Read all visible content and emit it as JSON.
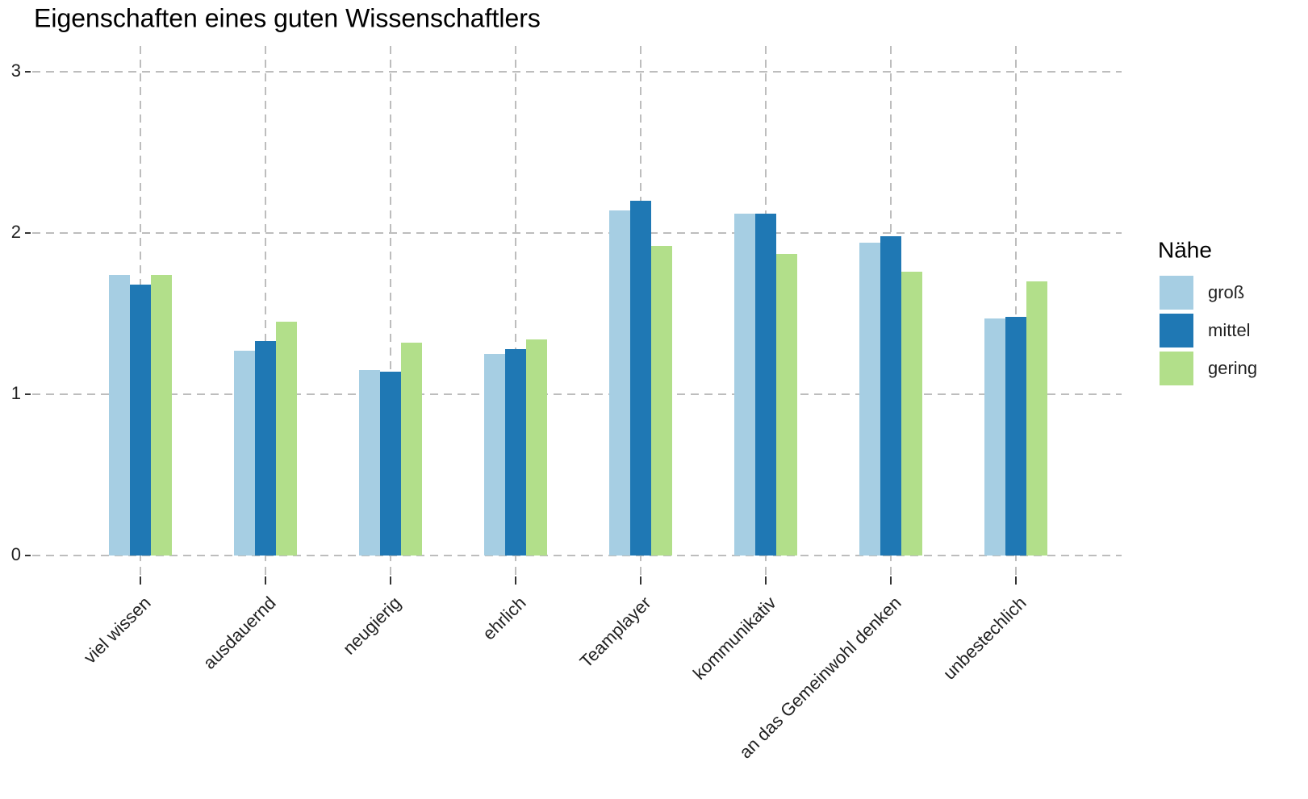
{
  "chart_data": {
    "type": "bar",
    "title": "Eigenschaften eines guten Wissenschaftlers",
    "categories": [
      "viel wissen",
      "ausdauernd",
      "neugierig",
      "ehrlich",
      "Teamplayer",
      "kommunikativ",
      "an das Gemeinwohl denken",
      "unbestechlich"
    ],
    "legend_title": "Nähe",
    "series": [
      {
        "name": "groß",
        "color": "#a6cee3",
        "values": [
          1.74,
          1.27,
          1.15,
          1.25,
          2.14,
          2.12,
          1.94,
          1.47
        ]
      },
      {
        "name": "mittel",
        "color": "#1f78b4",
        "values": [
          1.68,
          1.33,
          1.14,
          1.28,
          2.2,
          2.12,
          1.98,
          1.48
        ]
      },
      {
        "name": "gering",
        "color": "#b2df8a",
        "values": [
          1.74,
          1.45,
          1.32,
          1.34,
          1.92,
          1.87,
          1.76,
          1.7
        ]
      }
    ],
    "ylim": [
      -0.15,
      3.2
    ],
    "yticks": [
      0,
      1,
      2,
      3
    ],
    "grid": true,
    "legend": "right"
  }
}
